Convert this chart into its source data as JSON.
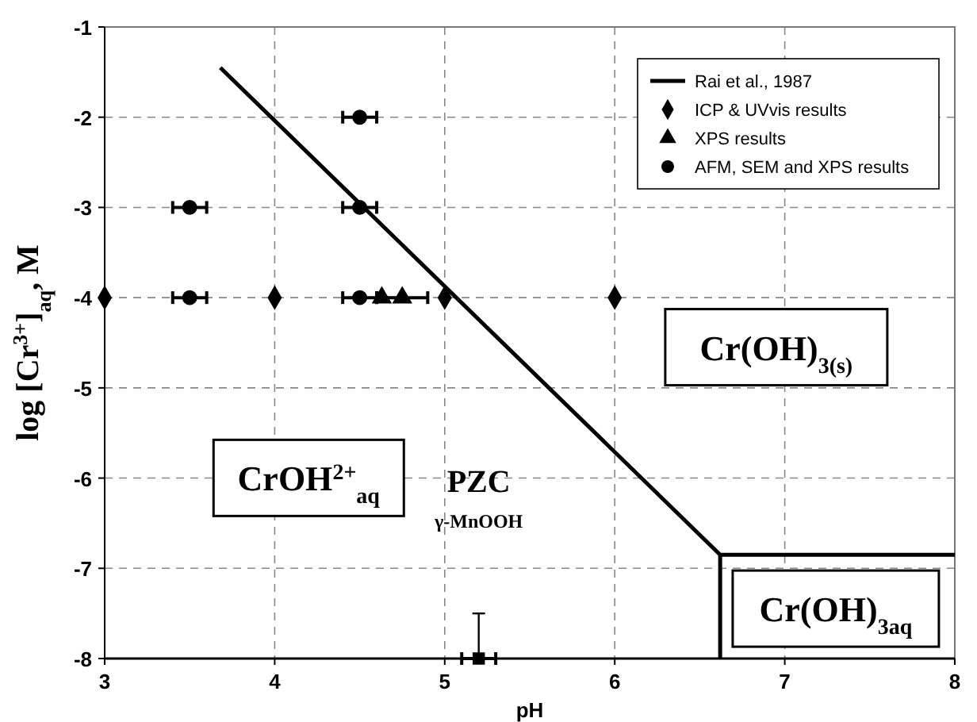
{
  "chart_data": {
    "type": "scatter",
    "xlabel": "pH",
    "ylabel": "log [Cr$^{3+}$]$_{aq}$, M",
    "xlim": [
      3,
      8
    ],
    "ylim": [
      -8,
      -1
    ],
    "xticks": [
      3,
      4,
      5,
      6,
      7,
      8
    ],
    "yticks": [
      -8,
      -7,
      -6,
      -5,
      -4,
      -3,
      -2,
      -1
    ],
    "grid": true,
    "legend": "top right",
    "series": [
      {
        "name": "Rai et al., 1987",
        "type": "line",
        "color": "#000000",
        "x": [
          3.68,
          6.62,
          8
        ],
        "values": [
          -1.45,
          -6.85,
          -6.85
        ]
      },
      {
        "type": "line",
        "color": "#000000",
        "x": [
          6.62,
          6.62
        ],
        "values": [
          -6.85,
          -8
        ]
      },
      {
        "name": "ICP & UVvis results",
        "color": "#000000",
        "marker": "diamond",
        "x": [
          3,
          4,
          5,
          6
        ],
        "values": [
          -4,
          -4,
          -4,
          -4
        ]
      },
      {
        "name": "XPS results",
        "color": "#000000",
        "marker": "triangle",
        "x": [
          4.63,
          4.75
        ],
        "values": [
          -4,
          -4
        ],
        "xerrors": [
          null,
          0.15
        ]
      },
      {
        "name": "AFM, SEM and XPS results",
        "color": "#000000",
        "marker": "circle",
        "x": [
          4.5,
          3.5,
          4.5,
          3.5,
          4.5
        ],
        "values": [
          -2,
          -3,
          -3,
          -4,
          -4
        ],
        "xerrors": [
          0.1,
          0.1,
          0.1,
          0.1,
          0.1
        ]
      },
      {
        "color": "#000000",
        "marker": "square",
        "x": [
          5.2
        ],
        "values": [
          -8
        ],
        "xerrors": [
          0.1
        ],
        "errors": [
          [
            -8,
            -7.5
          ]
        ]
      }
    ],
    "annotations": [
      "Cr(OH)$_{3(s)}$",
      "CrOH$^{2+}$$_{aq}$",
      "Cr(OH)$_{3aq}$",
      "PZC",
      "γ-MnOOH"
    ]
  }
}
